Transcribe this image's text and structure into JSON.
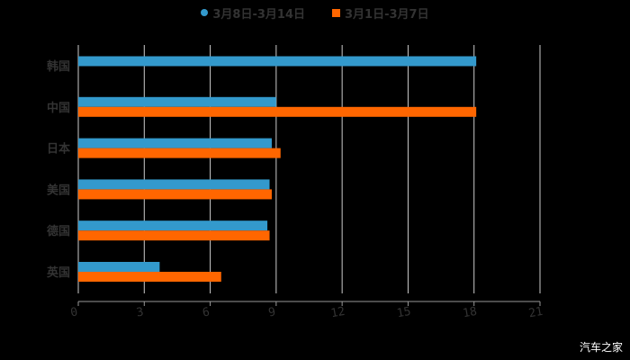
{
  "chart_data": {
    "type": "bar",
    "orientation": "horizontal",
    "title": "",
    "xlabel": "",
    "ylabel": "",
    "categories": [
      "韩国",
      "中国",
      "日本",
      "美国",
      "德国",
      "英国"
    ],
    "series": [
      {
        "name": "3月8日-3月14日",
        "color": "#3399cc",
        "values": [
          18.1,
          9.0,
          8.8,
          8.7,
          8.6,
          3.7
        ]
      },
      {
        "name": "3月1日-3月7日",
        "color": "#ff6600",
        "values": [
          null,
          18.1,
          9.2,
          8.8,
          8.7,
          6.5
        ]
      }
    ],
    "xlim": [
      0,
      21
    ],
    "xticks": [
      0,
      3,
      6,
      9,
      12,
      15,
      18,
      21
    ],
    "grid": true,
    "legend_position": "top"
  },
  "legend": {
    "items": [
      {
        "label": "3月8日-3月14日",
        "color": "#3399cc"
      },
      {
        "label": "3月1日-3月7日",
        "color": "#ff6600"
      }
    ]
  },
  "watermark": "汽车之家"
}
